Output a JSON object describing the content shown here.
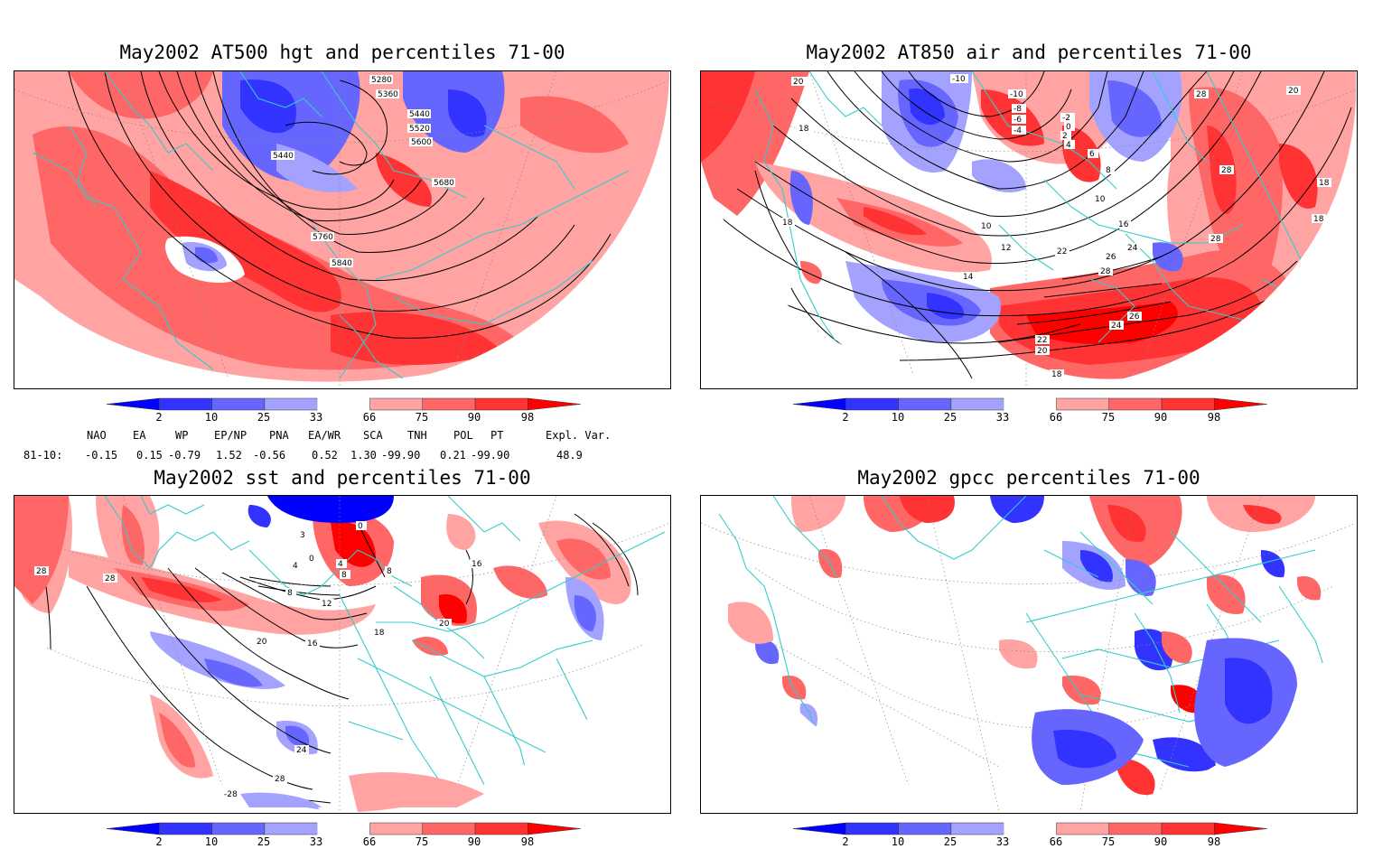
{
  "panels": [
    {
      "title": "May2002 AT500 hgt and percentiles 71-00",
      "contour_labels": [
        "5280",
        "5360",
        "5440",
        "5520",
        "5600",
        "5680",
        "5440",
        "5760",
        "5840"
      ]
    },
    {
      "title": "May2002 AT850 air and percentiles 71-00",
      "contour_labels": [
        "20",
        "18",
        "-10",
        "-10",
        "-8",
        "-6",
        "-4",
        "-2",
        "0",
        "2",
        "4",
        "6",
        "8",
        "10",
        "10",
        "12",
        "14",
        "16",
        "18",
        "18",
        "18",
        "20",
        "22",
        "24",
        "26",
        "28",
        "28",
        "28",
        "28",
        "22",
        "20",
        "24",
        "26",
        "18"
      ]
    },
    {
      "title": "May2002 sst and percentiles 71-00",
      "contour_labels": [
        "28",
        "28",
        "0",
        "3",
        "4",
        "8",
        "12",
        "16",
        "20",
        "24",
        "28",
        "-28",
        "0",
        "4",
        "8",
        "8",
        "16",
        "18",
        "20"
      ]
    },
    {
      "title": "May2002 gpcc percentiles 71-00",
      "contour_labels": []
    }
  ],
  "colorbar": {
    "labels": [
      "2",
      "10",
      "25",
      "33",
      "66",
      "75",
      "90",
      "98"
    ],
    "colors": [
      "#0000ff",
      "#3333ff",
      "#6666ff",
      "#a3a3ff",
      "#ffffff",
      "#ffa3a3",
      "#ff6666",
      "#ff3333",
      "#ff0000"
    ]
  },
  "indices": {
    "headers": [
      "NAO",
      "EA",
      "WP",
      "EP/NP",
      "PNA",
      "EA/WR",
      "SCA",
      "TNH",
      "POL",
      "PT",
      "Expl. Var."
    ],
    "row_label": "81-10:",
    "values": [
      "-0.15",
      "0.15",
      "-0.79",
      "1.52",
      "-0.56",
      "0.52",
      "1.30",
      "-99.90",
      "0.21",
      "-99.90",
      "48.9"
    ]
  },
  "colors": {
    "coast": "#33cccc",
    "grid": "#888888",
    "contour": "#000000"
  }
}
